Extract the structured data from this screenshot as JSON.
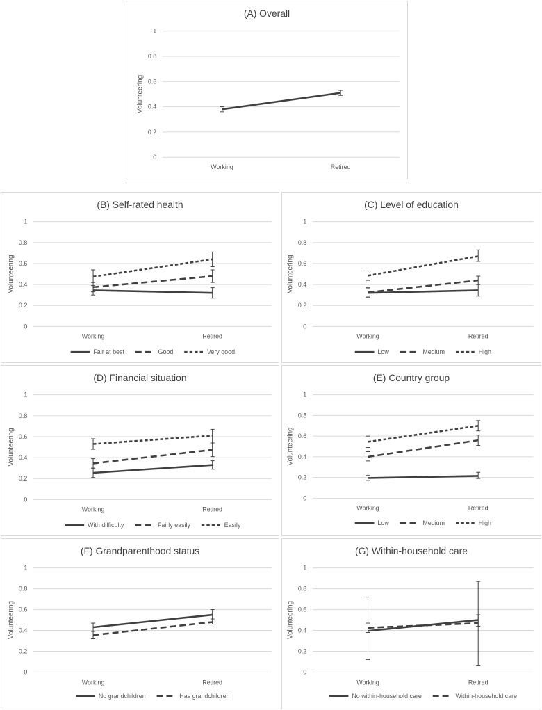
{
  "chart_data": [
    {
      "id": "A",
      "type": "line",
      "title": "(A) Overall",
      "xlabel": "",
      "ylabel": "Volunteering",
      "categories": [
        "Working",
        "Retired"
      ],
      "ylim": [
        0,
        1
      ],
      "yticks": [
        "0",
        "0.2",
        "0.4",
        "0.6",
        "0.8",
        "1"
      ],
      "grid": true,
      "series": [
        {
          "name": "",
          "style": "solid",
          "values": [
            0.38,
            0.51
          ],
          "lower": [
            0.36,
            0.49
          ],
          "upper": [
            0.4,
            0.53
          ]
        }
      ]
    },
    {
      "id": "B",
      "type": "line",
      "title": "(B) Self-rated health",
      "xlabel": "",
      "ylabel": "Volunteering",
      "categories": [
        "Working",
        "Retired"
      ],
      "ylim": [
        0,
        1
      ],
      "yticks": [
        "0",
        "0.2",
        "0.4",
        "0.6",
        "0.8",
        "1"
      ],
      "grid": true,
      "legend": "bottom",
      "series": [
        {
          "name": "Fair at best",
          "style": "solid",
          "values": [
            0.345,
            0.32
          ],
          "lower": [
            0.3,
            0.27
          ],
          "upper": [
            0.39,
            0.37
          ]
        },
        {
          "name": "Good",
          "style": "longdash",
          "values": [
            0.375,
            0.48
          ],
          "lower": [
            0.33,
            0.42
          ],
          "upper": [
            0.42,
            0.54
          ]
        },
        {
          "name": "Very good",
          "style": "shortdash",
          "values": [
            0.475,
            0.64
          ],
          "lower": [
            0.42,
            0.57
          ],
          "upper": [
            0.54,
            0.71
          ]
        }
      ]
    },
    {
      "id": "C",
      "type": "line",
      "title": "(C) Level of education",
      "xlabel": "",
      "ylabel": "Volunteering",
      "categories": [
        "Working",
        "Retired"
      ],
      "ylim": [
        0,
        1
      ],
      "yticks": [
        "0",
        "0.2",
        "0.4",
        "0.6",
        "0.8",
        "1"
      ],
      "grid": true,
      "legend": "bottom",
      "series": [
        {
          "name": "Low",
          "style": "solid",
          "values": [
            0.32,
            0.345
          ],
          "lower": [
            0.28,
            0.29
          ],
          "upper": [
            0.36,
            0.4
          ]
        },
        {
          "name": "Medium",
          "style": "longdash",
          "values": [
            0.325,
            0.44
          ],
          "lower": [
            0.28,
            0.4
          ],
          "upper": [
            0.37,
            0.48
          ]
        },
        {
          "name": "High",
          "style": "shortdash",
          "values": [
            0.485,
            0.67
          ],
          "lower": [
            0.44,
            0.62
          ],
          "upper": [
            0.53,
            0.73
          ]
        }
      ]
    },
    {
      "id": "D",
      "type": "line",
      "title": "(D) Financial situation",
      "xlabel": "",
      "ylabel": "Volunteering",
      "categories": [
        "Working",
        "Retired"
      ],
      "ylim": [
        0,
        1
      ],
      "yticks": [
        "0",
        "0.2",
        "0.4",
        "0.6",
        "0.8",
        "1"
      ],
      "grid": true,
      "legend": "bottom",
      "series": [
        {
          "name": "With difficulty",
          "style": "solid",
          "values": [
            0.255,
            0.33
          ],
          "lower": [
            0.21,
            0.29
          ],
          "upper": [
            0.3,
            0.37
          ]
        },
        {
          "name": "Fairly easily",
          "style": "longdash",
          "values": [
            0.345,
            0.475
          ],
          "lower": [
            0.3,
            0.41
          ],
          "upper": [
            0.39,
            0.54
          ]
        },
        {
          "name": "Easily",
          "style": "shortdash",
          "values": [
            0.53,
            0.61
          ],
          "lower": [
            0.48,
            0.54
          ],
          "upper": [
            0.58,
            0.67
          ]
        }
      ]
    },
    {
      "id": "E",
      "type": "line",
      "title": "(E) Country group",
      "xlabel": "",
      "ylabel": "Volunteering",
      "categories": [
        "Working",
        "Retired"
      ],
      "ylim": [
        0,
        1
      ],
      "yticks": [
        "0",
        "0.2",
        "0.4",
        "0.6",
        "0.8",
        "1"
      ],
      "grid": true,
      "legend": "bottom",
      "series": [
        {
          "name": "Low",
          "style": "solid",
          "values": [
            0.195,
            0.215
          ],
          "lower": [
            0.17,
            0.19
          ],
          "upper": [
            0.22,
            0.25
          ]
        },
        {
          "name": "Medium",
          "style": "longdash",
          "values": [
            0.4,
            0.56
          ],
          "lower": [
            0.36,
            0.51
          ],
          "upper": [
            0.45,
            0.61
          ]
        },
        {
          "name": "High",
          "style": "shortdash",
          "values": [
            0.545,
            0.7
          ],
          "lower": [
            0.49,
            0.65
          ],
          "upper": [
            0.6,
            0.75
          ]
        }
      ]
    },
    {
      "id": "F",
      "type": "line",
      "title": "(F) Grandparenthood status",
      "xlabel": "",
      "ylabel": "Volunteering",
      "categories": [
        "Working",
        "Retired"
      ],
      "ylim": [
        0,
        1
      ],
      "yticks": [
        "0",
        "0.2",
        "0.4",
        "0.6",
        "0.8",
        "1"
      ],
      "grid": true,
      "legend": "bottom",
      "series": [
        {
          "name": "No grandchildren",
          "style": "solid",
          "values": [
            0.43,
            0.55
          ],
          "lower": [
            0.39,
            0.5
          ],
          "upper": [
            0.47,
            0.6
          ]
        },
        {
          "name": "Has grandchildren",
          "style": "longdash",
          "values": [
            0.355,
            0.48
          ],
          "lower": [
            0.32,
            0.46
          ],
          "upper": [
            0.39,
            0.51
          ]
        }
      ]
    },
    {
      "id": "G",
      "type": "line",
      "title": "(G) Within-household care",
      "xlabel": "",
      "ylabel": "Volunteering",
      "categories": [
        "Working",
        "Retired"
      ],
      "ylim": [
        0,
        1
      ],
      "yticks": [
        "0",
        "0.2",
        "0.4",
        "0.6",
        "0.8",
        "1"
      ],
      "grid": true,
      "legend": "bottom",
      "series": [
        {
          "name": "No within-household care",
          "style": "solid",
          "values": [
            0.395,
            0.5
          ],
          "lower": [
            0.12,
            0.06
          ],
          "upper": [
            0.72,
            0.87
          ]
        },
        {
          "name": "Within-household care",
          "style": "longdash",
          "values": [
            0.425,
            0.47
          ],
          "lower": [
            0.38,
            0.44
          ],
          "upper": [
            0.47,
            0.55
          ]
        }
      ]
    }
  ]
}
